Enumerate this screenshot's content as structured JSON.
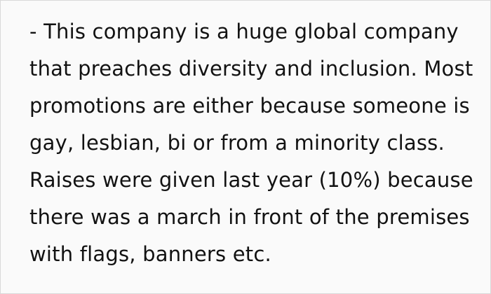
{
  "card": {
    "background": "#fafafa",
    "border_color": "#d9d9d9",
    "text_color": "#121212"
  },
  "quote": {
    "full_text": "- This company is a huge global company that preaches diversity and inclusion. Most promotions are either because someone is gay, lesbian, bi or from a minority class. Raises were given last year (10%) because there was a march in front of the premises with flags, banners etc.",
    "lines": [
      "- This company is a huge global company",
      "that preaches diversity and inclusion. Most",
      "promotions are either because someone is",
      "gay, lesbian, bi or from a minority class.",
      "Raises were given last year (10%) because",
      "there was a march in front of the premises",
      "with flags, banners etc."
    ]
  }
}
